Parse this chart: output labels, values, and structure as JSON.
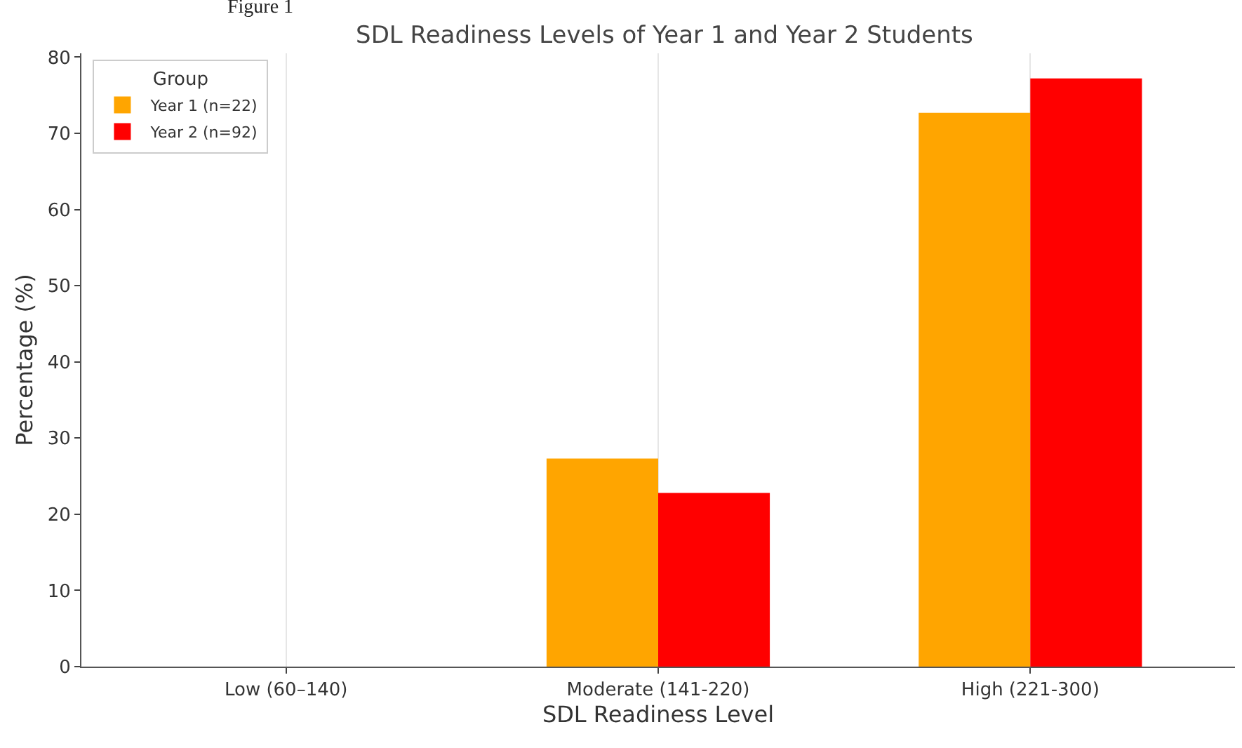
{
  "chart_data": {
    "type": "bar",
    "title": "SDL Readiness Levels of Year 1 and Year 2 Students",
    "annotations": [
      "Figure 1"
    ],
    "xlabel": "SDL Readiness Level",
    "ylabel": "Percentage (%)",
    "legend_title": "Group",
    "categories": [
      "Low (60–140)",
      "Moderate (141-220)",
      "High (221-300)"
    ],
    "series": [
      {
        "name": "Year 1 (n=22)",
        "color": "#ffa500",
        "values": [
          0,
          27.3,
          72.7
        ]
      },
      {
        "name": "Year 2 (n=92)",
        "color": "#ff0000",
        "values": [
          0,
          22.8,
          77.2
        ]
      }
    ],
    "ylim": [
      0,
      80.5
    ],
    "yticks": [
      0,
      10,
      20,
      30,
      40,
      50,
      60,
      70,
      80
    ],
    "grid": "x",
    "legend": "top left"
  }
}
